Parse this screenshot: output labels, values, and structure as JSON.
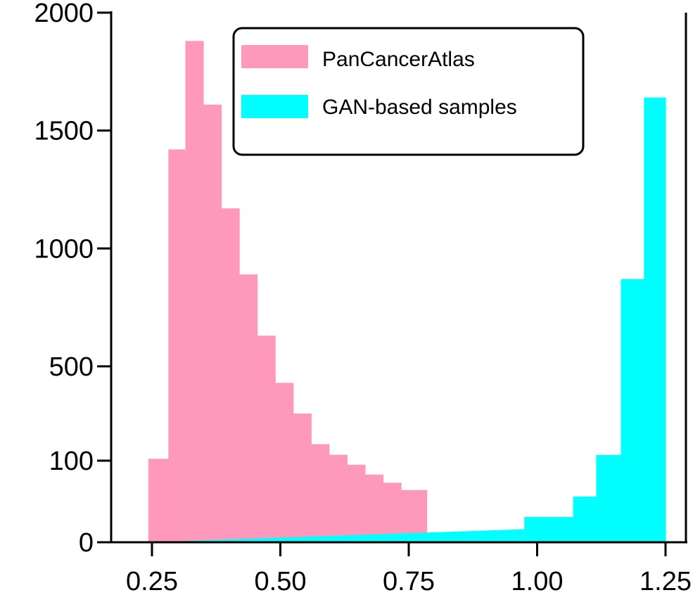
{
  "chart_data": {
    "type": "histogram",
    "title": "",
    "xlabel": "",
    "ylabel": "",
    "xlim": [
      0.2,
      1.3
    ],
    "x_ticks": [
      {
        "value": 0.25,
        "label": "0.25"
      },
      {
        "value": 0.5,
        "label": "0.50"
      },
      {
        "value": 0.75,
        "label": "0.75"
      },
      {
        "value": 1.0,
        "label": "1.00"
      },
      {
        "value": 1.25,
        "label": "1.25"
      }
    ],
    "y_ticks": [
      {
        "value": 0,
        "label": "0"
      },
      {
        "value": 100,
        "label": "100"
      },
      {
        "value": 500,
        "label": "500"
      },
      {
        "value": 1000,
        "label": "1000"
      },
      {
        "value": 1500,
        "label": "1500"
      },
      {
        "value": 2000,
        "label": "2000"
      }
    ],
    "y_scale": "piecewise (0–100 expanded, 100–2000 linear)",
    "grid": false,
    "legend_position": "top-right",
    "series": [
      {
        "name": "PanCancerAtlas",
        "color": "#FF99BB",
        "bins": [
          {
            "x0": 0.243,
            "x1": 0.282,
            "count": 108
          },
          {
            "x0": 0.282,
            "x1": 0.315,
            "count": 1420
          },
          {
            "x0": 0.315,
            "x1": 0.35,
            "count": 1880
          },
          {
            "x0": 0.35,
            "x1": 0.385,
            "count": 1610
          },
          {
            "x0": 0.385,
            "x1": 0.42,
            "count": 1170
          },
          {
            "x0": 0.42,
            "x1": 0.455,
            "count": 890
          },
          {
            "x0": 0.455,
            "x1": 0.49,
            "count": 630
          },
          {
            "x0": 0.49,
            "x1": 0.525,
            "count": 430
          },
          {
            "x0": 0.525,
            "x1": 0.56,
            "count": 300
          },
          {
            "x0": 0.56,
            "x1": 0.595,
            "count": 170
          },
          {
            "x0": 0.595,
            "x1": 0.63,
            "count": 125
          },
          {
            "x0": 0.63,
            "x1": 0.665,
            "count": 95
          },
          {
            "x0": 0.665,
            "x1": 0.7,
            "count": 83
          },
          {
            "x0": 0.7,
            "x1": 0.735,
            "count": 73
          },
          {
            "x0": 0.735,
            "x1": 0.785,
            "count": 64
          }
        ]
      },
      {
        "name": "GAN-based samples",
        "color": "#00FFFF",
        "bins": [
          {
            "x0": 0.243,
            "x1": 0.975,
            "start_count": 0,
            "end_count": 16
          },
          {
            "x0": 0.975,
            "x1": 1.07,
            "count": 31
          },
          {
            "x0": 1.07,
            "x1": 1.115,
            "count": 56
          },
          {
            "x0": 1.115,
            "x1": 1.163,
            "count": 124
          },
          {
            "x0": 1.163,
            "x1": 1.208,
            "count": 870
          },
          {
            "x0": 1.208,
            "x1": 1.25,
            "count": 1640
          }
        ]
      }
    ]
  }
}
